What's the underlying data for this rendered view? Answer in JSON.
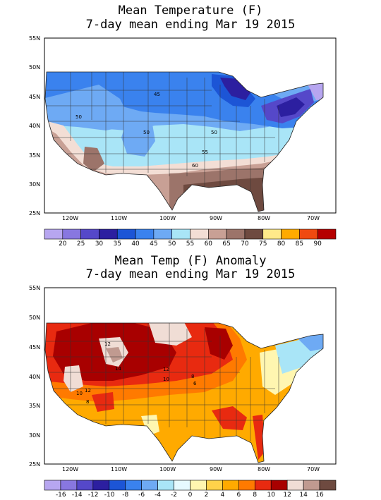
{
  "panel1": {
    "title_line1": "Mean Temperature (F)",
    "title_line2": "7-day mean ending Mar 19 2015",
    "lat_labels": [
      "55N",
      "50N",
      "45N",
      "40N",
      "35N",
      "30N",
      "25N"
    ],
    "lon_labels": [
      "120W",
      "110W",
      "100W",
      "90W",
      "80W",
      "70W"
    ],
    "contour_labels": [
      "45",
      "50",
      "50",
      "50",
      "55",
      "60"
    ],
    "colorbar_labels": [
      "20",
      "25",
      "30",
      "35",
      "40",
      "45",
      "50",
      "55",
      "60",
      "65",
      "70",
      "75",
      "80",
      "85",
      "90"
    ],
    "colorbar_colors": [
      "#b7a6f0",
      "#8877e0",
      "#5548c9",
      "#2c1fa0",
      "#1c55d6",
      "#3a82ee",
      "#6eaaf4",
      "#a9e5f7",
      "#f3ded5",
      "#c8a095",
      "#9c746a",
      "#6e4a40",
      "#ffe98a",
      "#ffaa00",
      "#f04a10",
      "#b50000"
    ]
  },
  "panel2": {
    "title_line1": "Mean Temp (F) Anomaly",
    "title_line2": "7-day mean ending Mar 19 2015",
    "lat_labels": [
      "55N",
      "50N",
      "45N",
      "40N",
      "35N",
      "30N",
      "25N"
    ],
    "lon_labels": [
      "120W",
      "110W",
      "100W",
      "90W",
      "80W",
      "70W"
    ],
    "contour_labels": [
      "12",
      "14",
      "12",
      "10",
      "8",
      "6",
      "10",
      "12",
      "8"
    ],
    "colorbar_labels": [
      "-16",
      "-14",
      "-12",
      "-10",
      "-8",
      "-6",
      "-4",
      "-2",
      "0",
      "2",
      "4",
      "6",
      "8",
      "10",
      "12",
      "14",
      "16"
    ],
    "colorbar_colors": [
      "#b7a6f0",
      "#8877e0",
      "#5548c9",
      "#2c1fa0",
      "#1c55d6",
      "#3a82ee",
      "#6eaaf4",
      "#a9e5f7",
      "#e6faff",
      "#fff6b0",
      "#ffd24a",
      "#ffaa00",
      "#ff7a00",
      "#e82a10",
      "#a80000",
      "#f0ddd5",
      "#c09a90",
      "#6e4a40"
    ]
  }
}
